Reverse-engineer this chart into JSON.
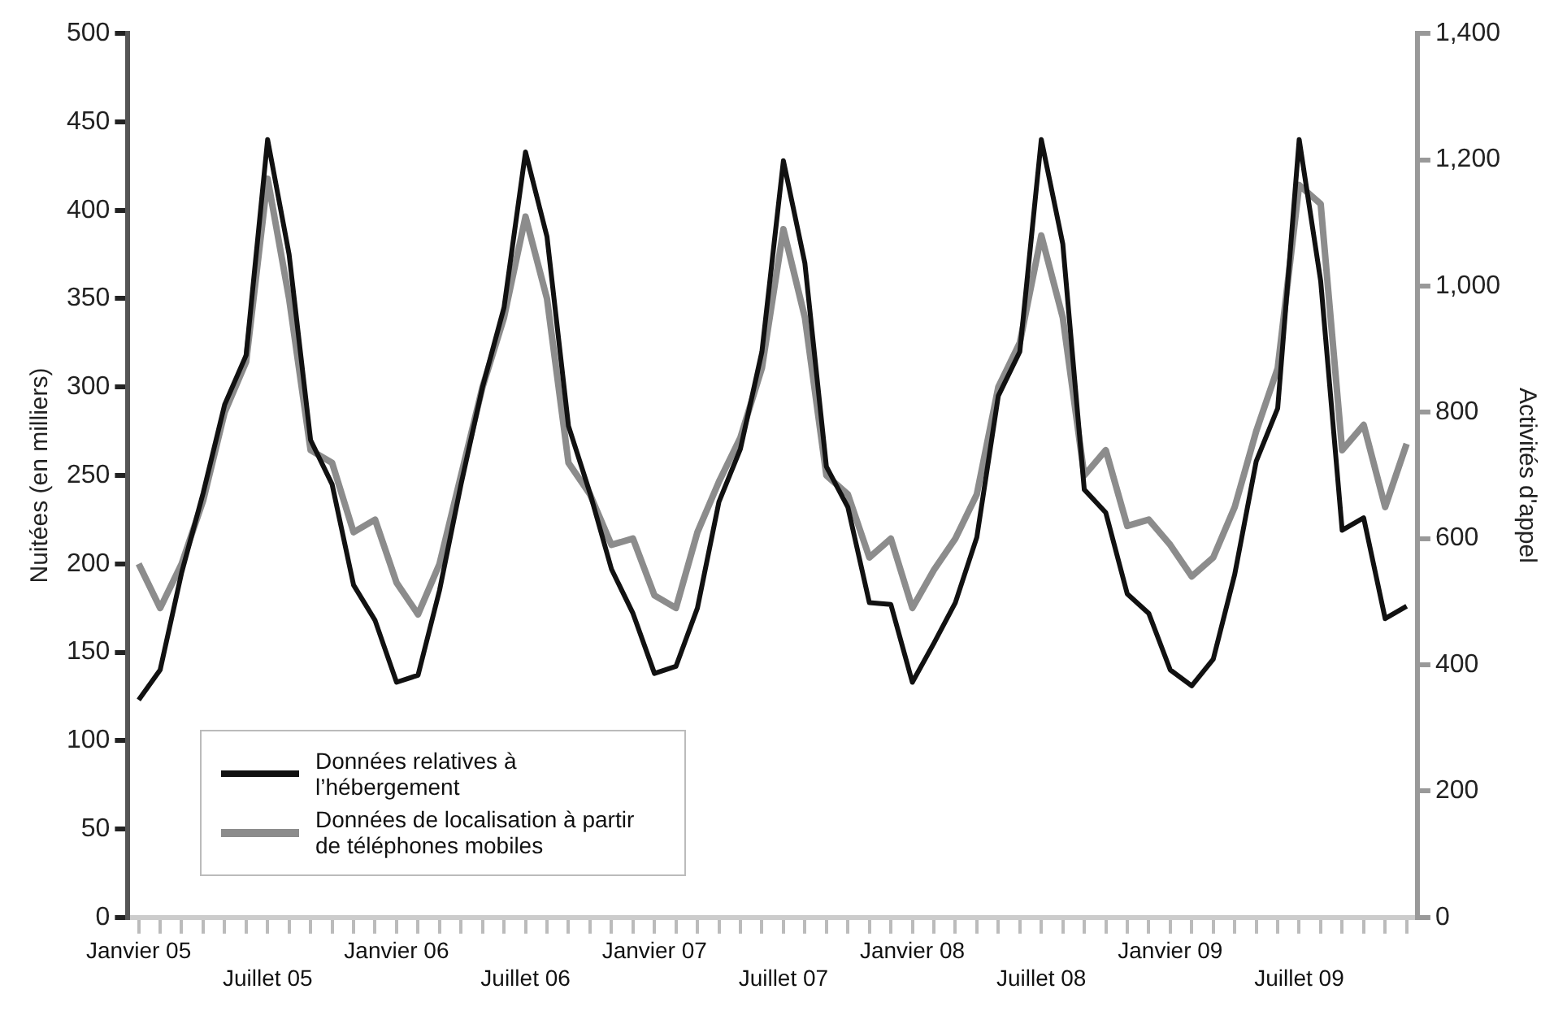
{
  "chart_data": {
    "type": "line",
    "ylabel": "Nuitées (en milliers)",
    "y2label": "Activités d'appel",
    "categories": [
      "Janvier 05",
      null,
      null,
      null,
      null,
      null,
      "Juillet 05",
      null,
      null,
      null,
      null,
      null,
      "Janvier 06",
      null,
      null,
      null,
      null,
      null,
      "Juillet 06",
      null,
      null,
      null,
      null,
      null,
      "Janvier 07",
      null,
      null,
      null,
      null,
      null,
      "Juillet 07",
      null,
      null,
      null,
      null,
      null,
      "Janvier 08",
      null,
      null,
      null,
      null,
      null,
      "Juillet 08",
      null,
      null,
      null,
      null,
      null,
      "Janvier 09",
      null,
      null,
      null,
      null,
      null,
      "Juillet 09",
      null,
      null,
      null,
      null,
      null
    ],
    "series": [
      {
        "name": "Données relatives à l’hébergement",
        "color": "#111111",
        "values": [
          123,
          140,
          195,
          240,
          290,
          318,
          440,
          375,
          270,
          245,
          188,
          168,
          133,
          137,
          185,
          245,
          300,
          345,
          433,
          385,
          278,
          240,
          197,
          172,
          138,
          142,
          175,
          235,
          265,
          320,
          428,
          370,
          255,
          232,
          178,
          177,
          133,
          155,
          178,
          215,
          295,
          320,
          440,
          381,
          242,
          229,
          183,
          172,
          140,
          131,
          146,
          194,
          258,
          288,
          440,
          360,
          219,
          226,
          169,
          176
        ]
      },
      {
        "name": "Données de localisation à partir de téléphones mobiles",
        "color": "#8c8c8c",
        "axis": "y2",
        "values": [
          560,
          490,
          560,
          660,
          800,
          880,
          1170,
          980,
          740,
          720,
          610,
          630,
          530,
          480,
          560,
          700,
          840,
          950,
          1110,
          980,
          720,
          670,
          590,
          600,
          510,
          490,
          610,
          690,
          760,
          870,
          1090,
          950,
          700,
          670,
          570,
          600,
          490,
          550,
          600,
          670,
          840,
          910,
          1080,
          950,
          700,
          740,
          620,
          630,
          590,
          540,
          570,
          650,
          770,
          870,
          1160,
          1130,
          740,
          780,
          650,
          750
        ]
      }
    ],
    "ylim": [
      0,
      500
    ],
    "yticks": [
      0,
      50,
      100,
      150,
      200,
      250,
      300,
      350,
      400,
      450,
      500
    ],
    "y2lim": [
      0,
      1400
    ],
    "y2ticks": [
      0,
      200,
      400,
      600,
      800,
      {
        "value": 1000,
        "label": "1,000"
      },
      {
        "value": 1200,
        "label": "1,200"
      },
      {
        "value": 1400,
        "label": "1,400"
      }
    ],
    "grid": false,
    "legend": "bottom left",
    "marker": "none",
    "line_style": "solid"
  }
}
